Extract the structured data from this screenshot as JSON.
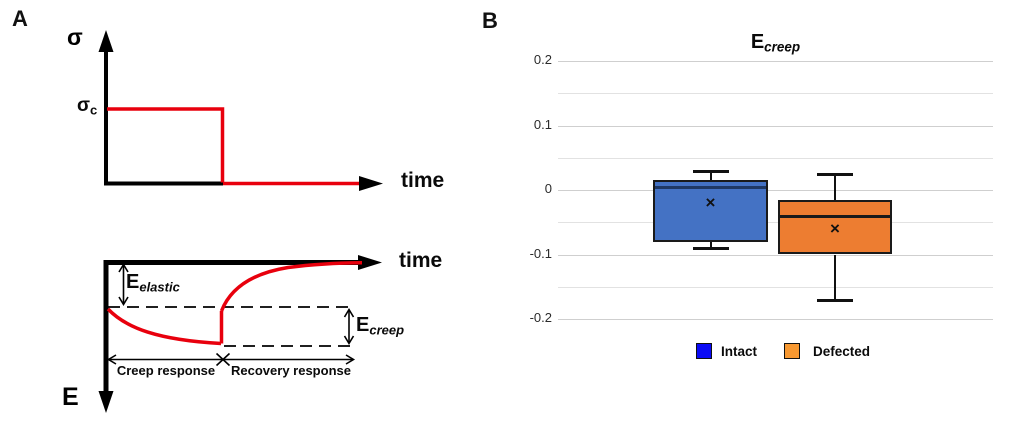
{
  "panelA": {
    "label": "A",
    "stress_diagram": {
      "y_axis_symbol": "σ",
      "stress_level_main": "σ",
      "stress_level_sub": "c",
      "x_axis_label": "time"
    },
    "strain_diagram": {
      "x_axis_label": "time",
      "y_axis_symbol": "E",
      "elastic_main": "E",
      "elastic_sub": "elastic",
      "creep_main": "E",
      "creep_sub": "creep",
      "creep_response_label": "Creep response",
      "recovery_response_label": "Recovery response"
    },
    "colors": {
      "curve_red": "#e8000d",
      "axis_black": "#000000"
    }
  },
  "panelB": {
    "label": "B",
    "title_main": "E",
    "title_sub": "creep",
    "y_ticks": [
      "0.2",
      "0.1",
      "0",
      "-0.1",
      "-0.2"
    ],
    "legend": {
      "intact_label": "Intact",
      "defected_label": "Defected"
    }
  },
  "chart_data": {
    "type": "box",
    "title": "E_creep",
    "ylabel": "",
    "ylim": [
      -0.25,
      0.2
    ],
    "yticks": [
      0.2,
      0.1,
      0,
      -0.1,
      -0.2
    ],
    "grid": true,
    "legend_position": "bottom",
    "series": [
      {
        "name": "Intact",
        "box_color": "#4472C4",
        "legend_color": "#0b0bf5",
        "median_color": "#1f3864",
        "whisker_high": 0.03,
        "q3": 0.015,
        "median": 0.005,
        "q1": -0.08,
        "whisker_low": -0.09,
        "mean": -0.02
      },
      {
        "name": "Defected",
        "box_color": "#ED7D31",
        "legend_color": "#F79831",
        "median_color": "#1a1a1a",
        "whisker_high": 0.025,
        "q3": -0.015,
        "median": -0.04,
        "q1": -0.1,
        "whisker_low": -0.17,
        "mean": -0.06
      }
    ]
  }
}
